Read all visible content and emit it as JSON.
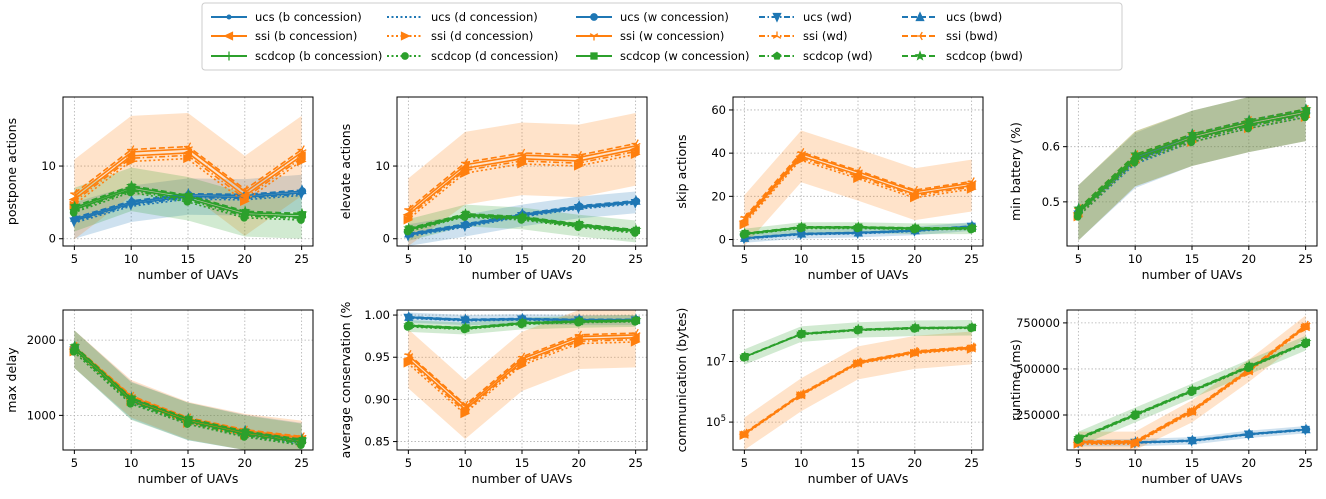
{
  "colors": {
    "ucs": "#1f77b4",
    "ssi": "#ff7f0e",
    "scdcop": "#2ca02c"
  },
  "legend": [
    {
      "label": "ucs (b concession)",
      "group": "ucs",
      "dash": "solid",
      "marker": "point"
    },
    {
      "label": "ssi (b concession)",
      "group": "ssi",
      "dash": "solid",
      "marker": "triangle-left"
    },
    {
      "label": "scdcop (b concession)",
      "group": "scdcop",
      "dash": "solid",
      "marker": "plus"
    },
    {
      "label": "ucs (d concession)",
      "group": "ucs",
      "dash": "dotted",
      "marker": "none"
    },
    {
      "label": "ssi (d concession)",
      "group": "ssi",
      "dash": "dotted",
      "marker": "triangle-right"
    },
    {
      "label": "scdcop (d concession)",
      "group": "scdcop",
      "dash": "dotted",
      "marker": "circle"
    },
    {
      "label": "ucs (w concession)",
      "group": "ucs",
      "dash": "solid",
      "marker": "circle"
    },
    {
      "label": "ssi (w concession)",
      "group": "ssi",
      "dash": "solid",
      "marker": "tri-down"
    },
    {
      "label": "scdcop (w concession)",
      "group": "scdcop",
      "dash": "solid",
      "marker": "square"
    },
    {
      "label": "ucs (wd)",
      "group": "ucs",
      "dash": "dashdot",
      "marker": "triangle-down"
    },
    {
      "label": "ssi (wd)",
      "group": "ssi",
      "dash": "dashdot",
      "marker": "tri-up"
    },
    {
      "label": "scdcop (wd)",
      "group": "scdcop",
      "dash": "dashdot",
      "marker": "pentagon"
    },
    {
      "label": "ucs (bwd)",
      "group": "ucs",
      "dash": "dashed",
      "marker": "triangle-up"
    },
    {
      "label": "ssi (bwd)",
      "group": "ssi",
      "dash": "dashed",
      "marker": "tri-left"
    },
    {
      "label": "scdcop (bwd)",
      "group": "scdcop",
      "dash": "dashed",
      "marker": "star"
    }
  ],
  "chart_data": [
    {
      "type": "line",
      "ylabel": "postpone actions",
      "xlabel": "number of UAVs",
      "x": [
        5,
        10,
        15,
        20,
        25
      ],
      "ylim": [
        -1,
        19.5
      ],
      "yticks": [
        0,
        10
      ],
      "ytick_labels": [
        "0",
        "10"
      ],
      "grid": true,
      "series": [
        {
          "group": "ucs",
          "values": [
            2.5,
            4.8,
            5.8,
            5.7,
            6.3
          ],
          "band": 2.5
        },
        {
          "group": "ssi",
          "values": [
            5.4,
            11.4,
            11.8,
            5.9,
            11.4
          ],
          "band": 5.5
        },
        {
          "group": "scdcop",
          "values": [
            4.0,
            6.8,
            5.5,
            3.3,
            3.0
          ],
          "band": 3.0
        }
      ]
    },
    {
      "type": "line",
      "ylabel": "elevate actions",
      "xlabel": "number of UAVs",
      "x": [
        5,
        10,
        15,
        20,
        25
      ],
      "ylim": [
        -1,
        19.5
      ],
      "yticks": [
        0,
        10
      ],
      "ytick_labels": [
        "0",
        "10"
      ],
      "grid": true,
      "series": [
        {
          "group": "ucs",
          "values": [
            0.5,
            1.8,
            3.2,
            4.3,
            5.0
          ],
          "band": 1.5
        },
        {
          "group": "ssi",
          "values": [
            3.3,
            9.7,
            11.0,
            10.7,
            12.3
          ],
          "band": 5.0
        },
        {
          "group": "scdcop",
          "values": [
            1.2,
            3.2,
            2.8,
            1.8,
            1.0
          ],
          "band": 1.5
        }
      ]
    },
    {
      "type": "line",
      "ylabel": "skip actions",
      "xlabel": "number of UAVs",
      "x": [
        5,
        10,
        15,
        20,
        25
      ],
      "ylim": [
        -3,
        66
      ],
      "yticks": [
        0,
        20,
        40,
        60
      ],
      "ytick_labels": [
        "0",
        "20",
        "40",
        "60"
      ],
      "grid": true,
      "series": [
        {
          "group": "ucs",
          "values": [
            0.5,
            2.5,
            3.0,
            4.0,
            6.0
          ],
          "band": 2.0
        },
        {
          "group": "ssi",
          "values": [
            8.5,
            38.5,
            30.0,
            21.0,
            25.0
          ],
          "band": 12.0
        },
        {
          "group": "scdcop",
          "values": [
            2.5,
            5.5,
            5.5,
            5.0,
            5.0
          ],
          "band": 2.5
        }
      ]
    },
    {
      "type": "line",
      "ylabel": "min battery (%)",
      "xlabel": "number of UAVs",
      "x": [
        5,
        10,
        15,
        20,
        25
      ],
      "ylim": [
        0.42,
        0.69
      ],
      "yticks": [
        0.5,
        0.6
      ],
      "ytick_labels": [
        "0.5",
        "0.6"
      ],
      "grid": true,
      "series": [
        {
          "group": "ucs",
          "values": [
            0.48,
            0.575,
            0.615,
            0.64,
            0.66
          ],
          "band": 0.05
        },
        {
          "group": "ssi",
          "values": [
            0.48,
            0.578,
            0.615,
            0.64,
            0.66
          ],
          "band": 0.05
        },
        {
          "group": "scdcop",
          "values": [
            0.48,
            0.578,
            0.615,
            0.64,
            0.66
          ],
          "band": 0.05
        }
      ]
    },
    {
      "type": "line",
      "ylabel": "max delay",
      "xlabel": "number of UAVs",
      "x": [
        5,
        10,
        15,
        20,
        25
      ],
      "ylim": [
        540,
        2400
      ],
      "yticks": [
        1000,
        2000
      ],
      "ytick_labels": [
        "1000",
        "2000"
      ],
      "grid": true,
      "series": [
        {
          "group": "ucs",
          "values": [
            1880,
            1200,
            920,
            760,
            650
          ],
          "band": 250
        },
        {
          "group": "ssi",
          "values": [
            1880,
            1220,
            930,
            770,
            680
          ],
          "band": 250
        },
        {
          "group": "scdcop",
          "values": [
            1880,
            1190,
            920,
            750,
            640
          ],
          "band": 250
        }
      ]
    },
    {
      "type": "line",
      "ylabel": "average conservation (%",
      "xlabel": "number of UAVs",
      "x": [
        5,
        10,
        15,
        20,
        25
      ],
      "ylim": [
        0.84,
        1.006
      ],
      "yticks": [
        0.85,
        0.9,
        0.95,
        1.0
      ],
      "ytick_labels": [
        "0.85",
        "0.90",
        "0.95",
        "1.00"
      ],
      "grid": true,
      "series": [
        {
          "group": "ucs",
          "values": [
            0.997,
            0.994,
            0.995,
            0.994,
            0.994
          ],
          "band": 0.006
        },
        {
          "group": "ssi",
          "values": [
            0.948,
            0.888,
            0.945,
            0.971,
            0.973
          ],
          "band": 0.035
        },
        {
          "group": "scdcop",
          "values": [
            0.987,
            0.984,
            0.99,
            0.992,
            0.993
          ],
          "band": 0.007
        }
      ]
    },
    {
      "type": "line",
      "ylabel": "communication (bytes)",
      "xlabel": "number of UAVs",
      "x": [
        5,
        10,
        15,
        20,
        25
      ],
      "yscale": "log",
      "ylim": [
        12000,
        500000000
      ],
      "yticks": [
        100000,
        10000000
      ],
      "ytick_labels": [
        "10^5",
        "10^7"
      ],
      "grid": true,
      "series": [
        {
          "group": "ssi",
          "values": [
            40000,
            800000,
            9000000,
            20000000,
            28000000
          ],
          "band_factor": 3.5
        },
        {
          "group": "scdcop",
          "values": [
            14000000,
            80000000,
            110000000,
            125000000,
            130000000
          ],
          "band_factor": 1.8
        }
      ]
    },
    {
      "type": "line",
      "ylabel": "runtime (ms)",
      "xlabel": "number of UAVs",
      "x": [
        5,
        10,
        15,
        20,
        25
      ],
      "ylim": [
        60000,
        820000
      ],
      "yticks": [
        250000,
        500000,
        750000
      ],
      "ytick_labels": [
        "250000",
        "500000",
        "750000"
      ],
      "grid": true,
      "series": [
        {
          "group": "ucs",
          "values": [
            100000,
            100000,
            110000,
            145000,
            170000
          ],
          "band": 20000
        },
        {
          "group": "ssi",
          "values": [
            100000,
            100000,
            270000,
            490000,
            730000
          ],
          "band": 60000
        },
        {
          "group": "scdcop",
          "values": [
            120000,
            250000,
            380000,
            510000,
            640000
          ],
          "band": 40000
        }
      ]
    }
  ]
}
